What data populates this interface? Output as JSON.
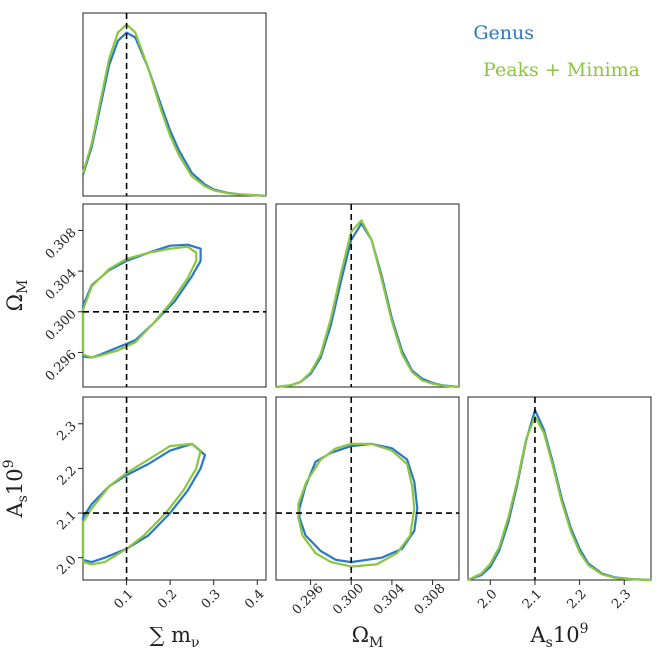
{
  "chart_data": {
    "type": "corner",
    "title": "",
    "colors": {
      "genus": "#2a78c8",
      "peaks_minima": "#8cc63f",
      "truth_line": "#000000"
    },
    "legend": {
      "placement": "top-right",
      "entries": [
        {
          "label": "Genus",
          "color": "#2a78c8"
        },
        {
          "label": "Peaks + Minima",
          "color": "#8cc63f"
        }
      ]
    },
    "parameters": [
      {
        "key": "mnu",
        "label": "∑ m",
        "label_sub": "ν",
        "label_sup": "",
        "fiducial": 0.1,
        "range": [
          0.0,
          0.42
        ],
        "ticks": [
          "0.1",
          "0.2",
          "0.3",
          "0.4"
        ]
      },
      {
        "key": "om",
        "label": "Ω",
        "label_sub": "M",
        "label_sup": "",
        "fiducial": 0.3,
        "range": [
          0.2926,
          0.3106
        ],
        "ticks": [
          "0.296",
          "0.300",
          "0.304",
          "0.308"
        ]
      },
      {
        "key": "as",
        "label": "A",
        "label_sub": "s",
        "label_sup": "9",
        "label_mid": "10",
        "fiducial": 2.1,
        "range": [
          1.95,
          2.36
        ],
        "ticks": [
          "2.0",
          "2.1",
          "2.2",
          "2.3"
        ]
      }
    ],
    "marginals": [
      {
        "param": "mnu",
        "ylim": [
          0,
          1.12
        ],
        "series": [
          {
            "name": "Genus",
            "x": [
              0.0,
              0.02,
              0.04,
              0.06,
              0.08,
              0.1,
              0.12,
              0.15,
              0.18,
              0.2,
              0.22,
              0.25,
              0.28,
              0.3,
              0.33,
              0.36,
              0.4,
              0.42
            ],
            "y": [
              0.13,
              0.3,
              0.55,
              0.8,
              0.95,
              1.0,
              0.97,
              0.78,
              0.55,
              0.4,
              0.28,
              0.14,
              0.07,
              0.04,
              0.02,
              0.01,
              0.004,
              0.0
            ]
          },
          {
            "name": "Peaks + Minima",
            "x": [
              0.0,
              0.02,
              0.04,
              0.06,
              0.08,
              0.1,
              0.12,
              0.15,
              0.18,
              0.2,
              0.22,
              0.25,
              0.28,
              0.3,
              0.33,
              0.36,
              0.4,
              0.42
            ],
            "y": [
              0.14,
              0.32,
              0.58,
              0.84,
              1.0,
              1.05,
              1.0,
              0.78,
              0.52,
              0.37,
              0.25,
              0.12,
              0.06,
              0.035,
              0.018,
              0.01,
              0.004,
              0.0
            ]
          }
        ]
      },
      {
        "param": "om",
        "ylim": [
          0,
          1.12
        ],
        "series": [
          {
            "name": "Genus",
            "x": [
              0.2926,
              0.294,
              0.295,
              0.296,
              0.297,
              0.298,
              0.299,
              0.3,
              0.301,
              0.302,
              0.303,
              0.304,
              0.305,
              0.306,
              0.307,
              0.308,
              0.309,
              0.3106
            ],
            "y": [
              0.0,
              0.01,
              0.03,
              0.08,
              0.18,
              0.38,
              0.65,
              0.9,
              1.0,
              0.9,
              0.68,
              0.42,
              0.22,
              0.1,
              0.05,
              0.025,
              0.01,
              0.0
            ]
          },
          {
            "name": "Peaks + Minima",
            "x": [
              0.2926,
              0.294,
              0.295,
              0.296,
              0.297,
              0.298,
              0.299,
              0.3,
              0.301,
              0.302,
              0.303,
              0.304,
              0.305,
              0.306,
              0.307,
              0.308,
              0.309,
              0.3106
            ],
            "y": [
              0.0,
              0.01,
              0.03,
              0.09,
              0.2,
              0.42,
              0.7,
              0.95,
              1.02,
              0.9,
              0.66,
              0.4,
              0.2,
              0.09,
              0.04,
              0.02,
              0.008,
              0.0
            ]
          }
        ]
      },
      {
        "param": "as",
        "ylim": [
          0,
          1.12
        ],
        "series": [
          {
            "name": "Genus",
            "x": [
              1.95,
              1.98,
              2.0,
              2.02,
              2.04,
              2.06,
              2.08,
              2.1,
              2.12,
              2.14,
              2.16,
              2.18,
              2.2,
              2.22,
              2.25,
              2.28,
              2.32,
              2.36
            ],
            "y": [
              0.0,
              0.03,
              0.08,
              0.18,
              0.35,
              0.58,
              0.85,
              1.04,
              0.92,
              0.72,
              0.5,
              0.32,
              0.19,
              0.1,
              0.04,
              0.015,
              0.005,
              0.0
            ]
          },
          {
            "name": "Peaks + Minima",
            "x": [
              1.95,
              1.98,
              2.0,
              2.02,
              2.04,
              2.06,
              2.08,
              2.1,
              2.12,
              2.14,
              2.16,
              2.18,
              2.2,
              2.22,
              2.25,
              2.28,
              2.32,
              2.36
            ],
            "y": [
              0.0,
              0.04,
              0.1,
              0.2,
              0.38,
              0.6,
              0.86,
              1.0,
              0.9,
              0.7,
              0.48,
              0.3,
              0.17,
              0.09,
              0.035,
              0.012,
              0.004,
              0.0
            ]
          }
        ]
      }
    ],
    "contours": [
      {
        "xparam": "mnu",
        "yparam": "om",
        "series": [
          {
            "name": "Genus",
            "points": [
              [
                0.0,
                0.3006
              ],
              [
                0.02,
                0.3026
              ],
              [
                0.06,
                0.3041
              ],
              [
                0.1,
                0.305
              ],
              [
                0.15,
                0.3058
              ],
              [
                0.2,
                0.3065
              ],
              [
                0.24,
                0.3066
              ],
              [
                0.27,
                0.3062
              ],
              [
                0.27,
                0.305
              ],
              [
                0.25,
                0.3035
              ],
              [
                0.21,
                0.301
              ],
              [
                0.16,
                0.2988
              ],
              [
                0.12,
                0.2972
              ],
              [
                0.08,
                0.2965
              ],
              [
                0.04,
                0.2958
              ],
              [
                0.02,
                0.2955
              ],
              [
                0.0,
                0.2956
              ]
            ]
          },
          {
            "name": "Peaks + Minima",
            "points": [
              [
                0.0,
                0.3002
              ],
              [
                0.02,
                0.3025
              ],
              [
                0.06,
                0.3042
              ],
              [
                0.1,
                0.3052
              ],
              [
                0.15,
                0.3058
              ],
              [
                0.2,
                0.3062
              ],
              [
                0.24,
                0.3064
              ],
              [
                0.26,
                0.3058
              ],
              [
                0.26,
                0.305
              ],
              [
                0.24,
                0.3033
              ],
              [
                0.2,
                0.3008
              ],
              [
                0.16,
                0.2988
              ],
              [
                0.12,
                0.297
              ],
              [
                0.08,
                0.2962
              ],
              [
                0.04,
                0.2957
              ],
              [
                0.02,
                0.2955
              ],
              [
                0.0,
                0.2958
              ]
            ]
          }
        ]
      },
      {
        "xparam": "mnu",
        "yparam": "as",
        "series": [
          {
            "name": "Genus",
            "points": [
              [
                0.0,
                2.09
              ],
              [
                0.02,
                2.12
              ],
              [
                0.06,
                2.16
              ],
              [
                0.1,
                2.185
              ],
              [
                0.15,
                2.21
              ],
              [
                0.2,
                2.24
              ],
              [
                0.25,
                2.255
              ],
              [
                0.28,
                2.23
              ],
              [
                0.27,
                2.2
              ],
              [
                0.24,
                2.15
              ],
              [
                0.2,
                2.1
              ],
              [
                0.15,
                2.05
              ],
              [
                0.1,
                2.02
              ],
              [
                0.05,
                2.0
              ],
              [
                0.02,
                1.99
              ],
              [
                0.0,
                1.995
              ]
            ]
          },
          {
            "name": "Peaks + Minima",
            "points": [
              [
                0.0,
                2.08
              ],
              [
                0.02,
                2.11
              ],
              [
                0.06,
                2.16
              ],
              [
                0.1,
                2.19
              ],
              [
                0.15,
                2.22
              ],
              [
                0.2,
                2.25
              ],
              [
                0.25,
                2.255
              ],
              [
                0.27,
                2.24
              ],
              [
                0.26,
                2.2
              ],
              [
                0.23,
                2.15
              ],
              [
                0.19,
                2.1
              ],
              [
                0.14,
                2.05
              ],
              [
                0.1,
                2.02
              ],
              [
                0.05,
                1.99
              ],
              [
                0.02,
                1.985
              ],
              [
                0.0,
                1.99
              ]
            ]
          }
        ]
      },
      {
        "xparam": "om",
        "yparam": "as",
        "series": [
          {
            "name": "Genus",
            "points": [
              [
                0.2949,
                2.11
              ],
              [
                0.2955,
                2.16
              ],
              [
                0.2965,
                2.215
              ],
              [
                0.298,
                2.235
              ],
              [
                0.3,
                2.25
              ],
              [
                0.302,
                2.255
              ],
              [
                0.304,
                2.245
              ],
              [
                0.3055,
                2.22
              ],
              [
                0.3062,
                2.17
              ],
              [
                0.3065,
                2.11
              ],
              [
                0.3062,
                2.06
              ],
              [
                0.305,
                2.02
              ],
              [
                0.303,
                2.0
              ],
              [
                0.3,
                1.99
              ],
              [
                0.2985,
                1.995
              ],
              [
                0.297,
                2.015
              ],
              [
                0.2955,
                2.05
              ],
              [
                0.2949,
                2.09
              ]
            ]
          },
          {
            "name": "Peaks + Minima",
            "points": [
              [
                0.2948,
                2.12
              ],
              [
                0.2956,
                2.17
              ],
              [
                0.297,
                2.22
              ],
              [
                0.2985,
                2.245
              ],
              [
                0.3,
                2.255
              ],
              [
                0.302,
                2.255
              ],
              [
                0.304,
                2.24
              ],
              [
                0.3055,
                2.21
              ],
              [
                0.306,
                2.16
              ],
              [
                0.3062,
                2.11
              ],
              [
                0.3058,
                2.05
              ],
              [
                0.3045,
                2.01
              ],
              [
                0.3025,
                1.985
              ],
              [
                0.3,
                1.98
              ],
              [
                0.298,
                1.99
              ],
              [
                0.2965,
                2.01
              ],
              [
                0.2952,
                2.05
              ],
              [
                0.2948,
                2.09
              ]
            ]
          }
        ]
      }
    ]
  }
}
